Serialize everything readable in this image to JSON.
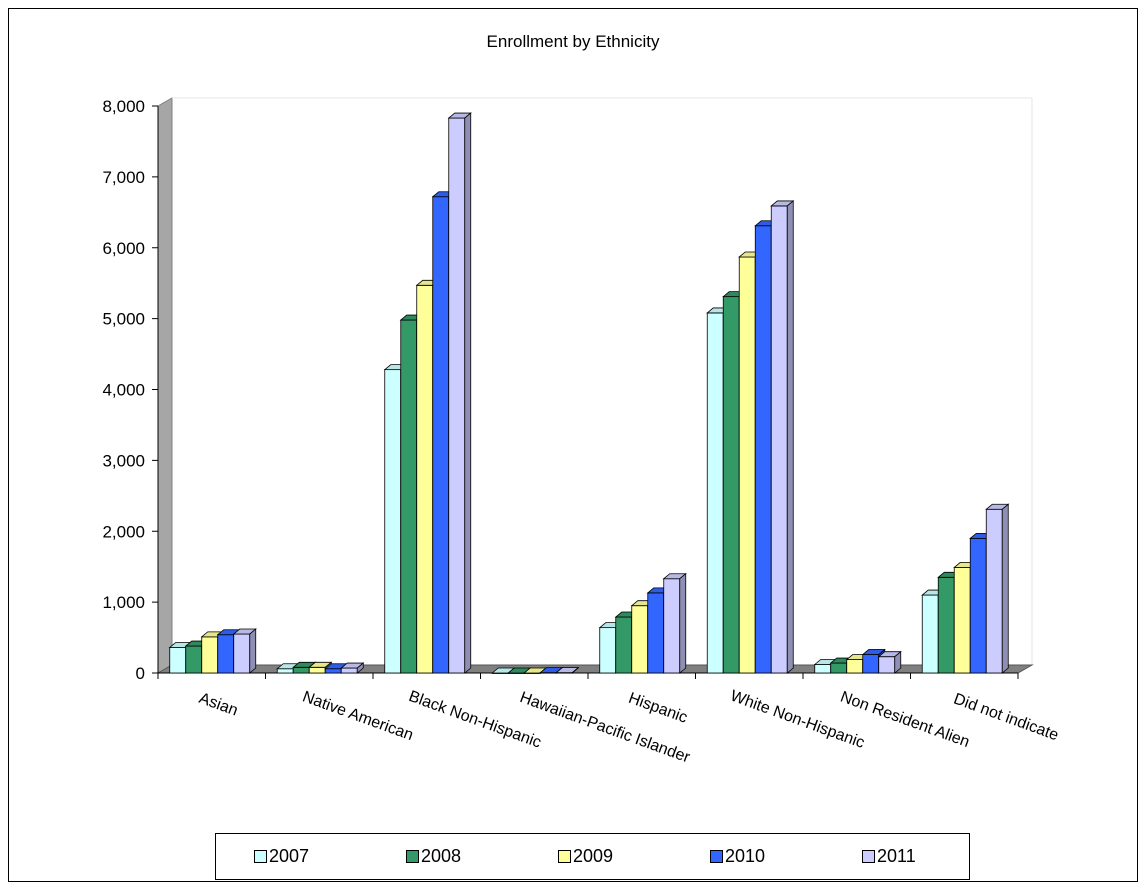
{
  "chart_data": {
    "type": "bar",
    "title": "Enrollment by Ethnicity",
    "xlabel": "",
    "ylabel": "",
    "ylim": [
      0,
      8000
    ],
    "y_ticks": [
      "0",
      "1,000",
      "2,000",
      "3,000",
      "4,000",
      "5,000",
      "6,000",
      "7,000",
      "8,000"
    ],
    "grid": false,
    "legend_position": "bottom",
    "categories": [
      "Asian",
      "Native American",
      "Black Non-Hispanic",
      "Hawaiian-Pacific Islander",
      "Hispanic",
      "White Non-Hispanic",
      "Non Resident Alien",
      "Did not indicate"
    ],
    "series": [
      {
        "name": "2007",
        "color": "#ccffff",
        "values": [
          360,
          60,
          4280,
          0,
          640,
          5080,
          120,
          1100
        ]
      },
      {
        "name": "2008",
        "color": "#339966",
        "values": [
          380,
          80,
          4980,
          0,
          790,
          5310,
          140,
          1350
        ]
      },
      {
        "name": "2009",
        "color": "#ffff99",
        "values": [
          510,
          80,
          5470,
          0,
          950,
          5870,
          190,
          1490
        ]
      },
      {
        "name": "2010",
        "color": "#3366ff",
        "values": [
          540,
          60,
          6720,
          5,
          1130,
          6310,
          260,
          1900
        ]
      },
      {
        "name": "2011",
        "color": "#ccccff",
        "values": [
          550,
          70,
          7830,
          5,
          1330,
          6590,
          230,
          2310
        ]
      }
    ]
  }
}
